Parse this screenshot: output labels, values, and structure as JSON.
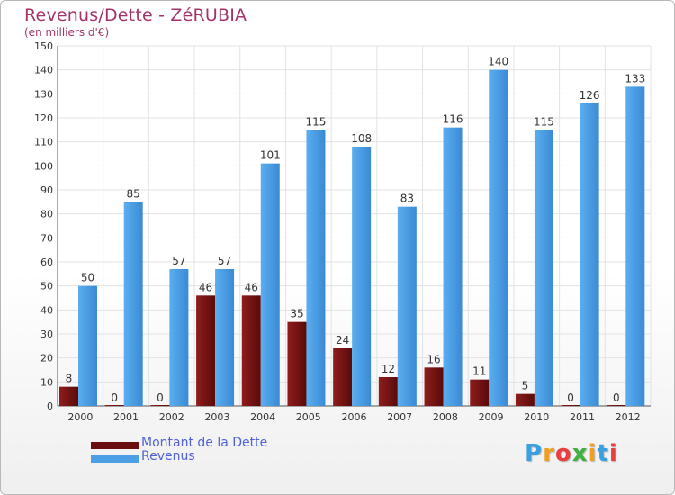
{
  "chart_data": {
    "type": "bar",
    "title": "Revenus/Dette - ZéRUBIA",
    "subtitle": "(en milliers d'€)",
    "categories": [
      "2000",
      "2001",
      "2002",
      "2003",
      "2004",
      "2005",
      "2006",
      "2007",
      "2008",
      "2009",
      "2010",
      "2011",
      "2012"
    ],
    "series": [
      {
        "name": "Montant de la Dette",
        "color": "#7a1212",
        "values": [
          8,
          0,
          0,
          46,
          46,
          35,
          24,
          12,
          16,
          11,
          5,
          0,
          0
        ]
      },
      {
        "name": "Revenus",
        "color": "#4c9fe4",
        "values": [
          50,
          85,
          57,
          57,
          101,
          115,
          108,
          83,
          116,
          140,
          115,
          126,
          133
        ]
      }
    ],
    "ylim": [
      0,
      150
    ],
    "yticks": [
      0,
      10,
      20,
      30,
      40,
      50,
      60,
      70,
      80,
      90,
      100,
      110,
      120,
      130,
      140,
      150
    ],
    "grid": true,
    "legend_position": "bottom-left"
  },
  "logo": {
    "letters": [
      "P",
      "r",
      "o",
      "x",
      "i",
      "t",
      "i"
    ],
    "colors": [
      "#3aa0e0",
      "#f0a020",
      "#e84040",
      "#40b040",
      "#f0a020",
      "#3aa0e0",
      "#e84040"
    ]
  }
}
